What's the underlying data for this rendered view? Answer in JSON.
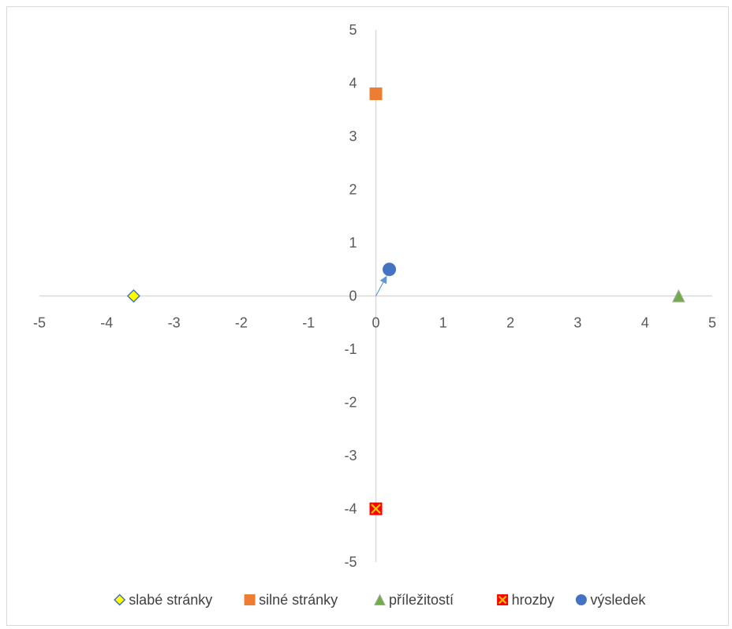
{
  "chart_data": {
    "type": "scatter",
    "title": "",
    "xlabel": "",
    "ylabel": "",
    "xlim": [
      -5,
      5
    ],
    "ylim": [
      -5,
      5
    ],
    "x_ticks": [
      "-5",
      "-4",
      "-3",
      "-2",
      "-1",
      "0",
      "1",
      "2",
      "3",
      "4",
      "5"
    ],
    "y_ticks": [
      "5",
      "4",
      "3",
      "2",
      "1",
      "0",
      "-1",
      "-2",
      "-3",
      "-4",
      "-5"
    ],
    "grid": false,
    "legend_position": "bottom",
    "series": [
      {
        "name": "slabé stránky",
        "marker": "diamond",
        "color": "#ffff00",
        "stroke": "#4472c4",
        "points": [
          [
            -3.6,
            0
          ]
        ]
      },
      {
        "name": "silné stránky",
        "marker": "square",
        "color": "#ed7d31",
        "stroke": "#ed7d31",
        "points": [
          [
            0,
            3.8
          ]
        ]
      },
      {
        "name": "příležitostí",
        "marker": "triangle",
        "color": "#70ad47",
        "stroke": "#a5a5a5",
        "points": [
          [
            4.5,
            0
          ]
        ]
      },
      {
        "name": "hrozby",
        "marker": "x-square",
        "color": "#ff0000",
        "stroke": "#ffc000",
        "points": [
          [
            0,
            -4
          ]
        ]
      },
      {
        "name": "výsledek",
        "marker": "circle",
        "color": "#4472c4",
        "stroke": "#4472c4",
        "points": [
          [
            0.2,
            0.5
          ]
        ]
      }
    ],
    "annotations": [
      {
        "type": "arrow",
        "from": [
          0,
          0
        ],
        "to": [
          0.15,
          0.35
        ],
        "color": "#5b9bd5"
      }
    ],
    "colors": {
      "axis": "#d9d9d9",
      "tick_text": "#595959",
      "legend_text": "#404040",
      "frame": "#d9d9d9"
    }
  }
}
